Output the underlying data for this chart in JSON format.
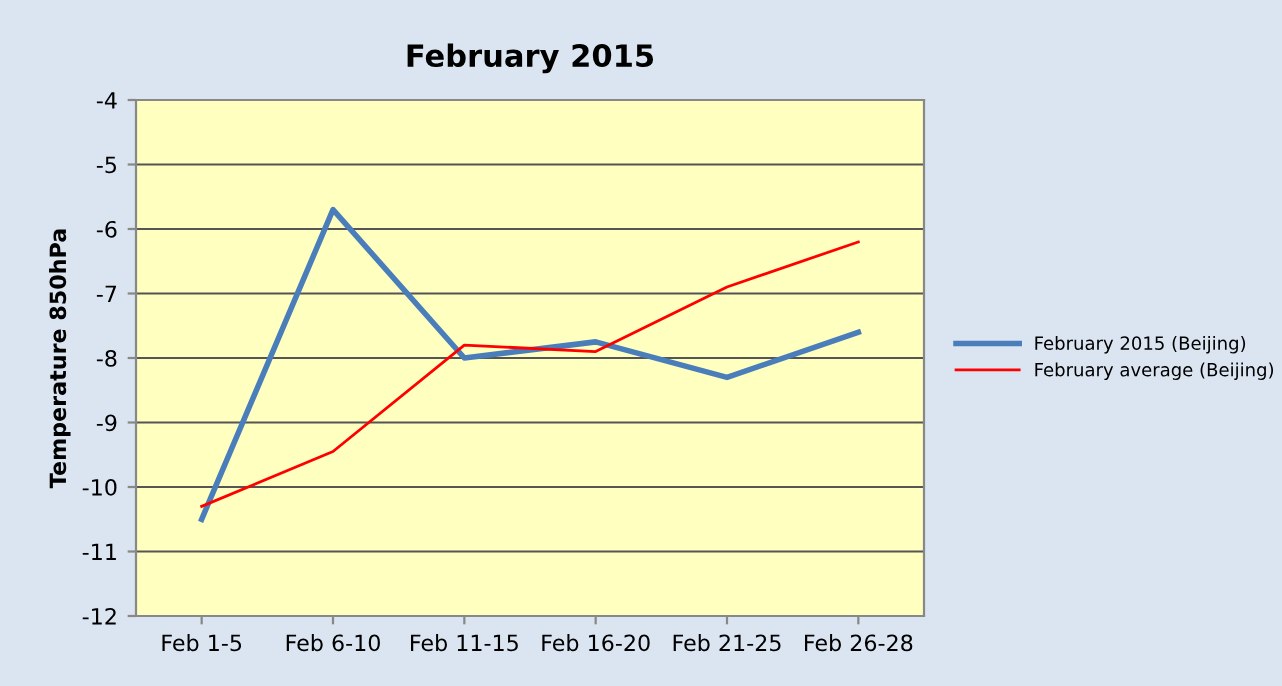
{
  "chart_data": {
    "type": "line",
    "title": "February 2015",
    "ylabel": "Temperature 850hPa",
    "categories": [
      "Feb 1-5",
      "Feb 6-10",
      "Feb 11-15",
      "Feb 16-20",
      "Feb 21-25",
      "Feb 26-28"
    ],
    "series": [
      {
        "name": "February 2015 (Beijing)",
        "color": "#4a7ebb",
        "values": [
          -10.5,
          -5.7,
          -8.0,
          -7.75,
          -8.3,
          -7.6
        ]
      },
      {
        "name": "February average (Beijing)",
        "color": "#ff0000",
        "values": [
          -10.3,
          -9.45,
          -7.8,
          -7.9,
          -6.9,
          -6.2
        ]
      }
    ],
    "ylim": [
      -12,
      -4
    ],
    "yticks": [
      -12,
      -11,
      -10,
      -9,
      -8,
      -7,
      -6,
      -5,
      -4
    ],
    "grid": "y",
    "legend": "right",
    "marker": "none",
    "line_style": "solid"
  }
}
